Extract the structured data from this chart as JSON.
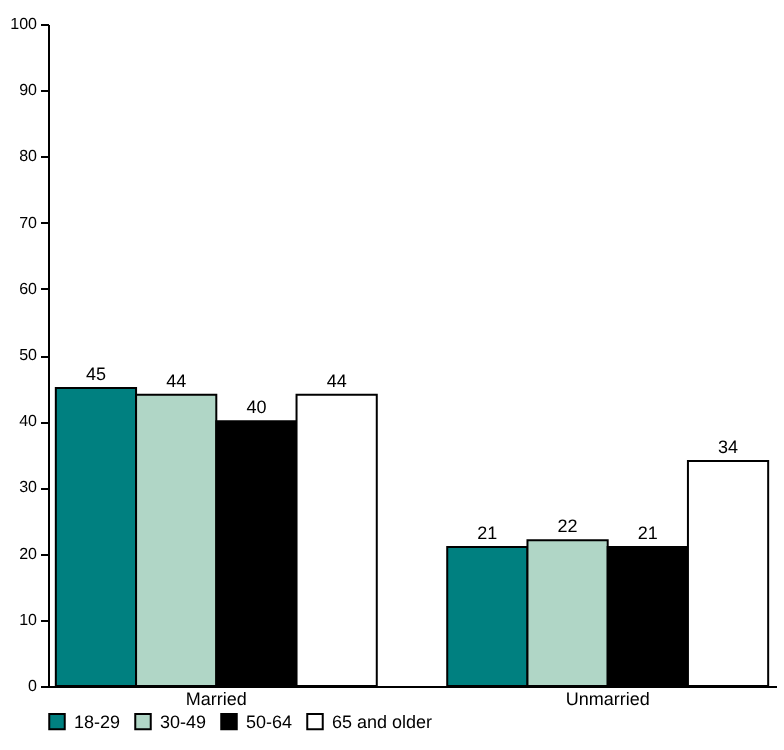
{
  "chart_data": {
    "type": "bar",
    "categories": [
      "Married",
      "Unmarried"
    ],
    "series": [
      {
        "name": "18-29",
        "color": "#008080",
        "values": [
          45,
          21
        ]
      },
      {
        "name": "30-49",
        "color": "#b0d6c6",
        "values": [
          44,
          22
        ]
      },
      {
        "name": "50-64",
        "color": "#000000",
        "values": [
          40,
          21
        ]
      },
      {
        "name": "65 and older",
        "color": "#ffffff",
        "values": [
          44,
          34
        ]
      }
    ],
    "ylim": [
      0,
      100
    ],
    "yticks": [
      0,
      10,
      20,
      30,
      40,
      50,
      60,
      70,
      80,
      90,
      100
    ],
    "data_labels": true,
    "legend": "bottom"
  }
}
